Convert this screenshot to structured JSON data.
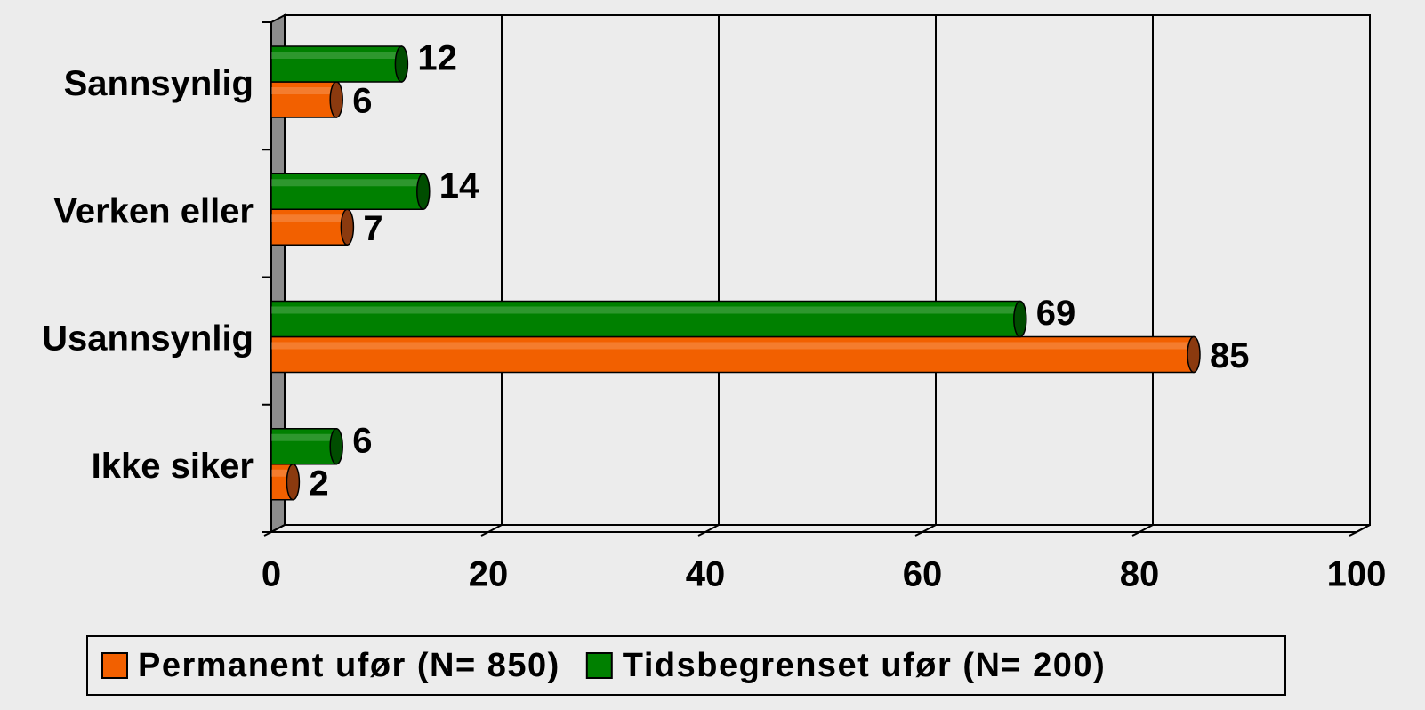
{
  "chart_data": {
    "type": "bar",
    "orientation": "horizontal",
    "categories": [
      "Sannsynlig",
      "Verken eller",
      "Usannsynlig",
      "Ikke siker"
    ],
    "series": [
      {
        "name": "Permanent ufør (N= 850)",
        "color": "#f26000",
        "values": [
          6,
          7,
          85,
          2
        ]
      },
      {
        "name": "Tidsbegrenset ufør (N= 200)",
        "color": "#008000",
        "values": [
          12,
          14,
          69,
          6
        ]
      }
    ],
    "xlim": [
      0,
      100
    ],
    "xticks": [
      0,
      20,
      40,
      60,
      80,
      100
    ],
    "grid": true,
    "legend": "bottom"
  }
}
